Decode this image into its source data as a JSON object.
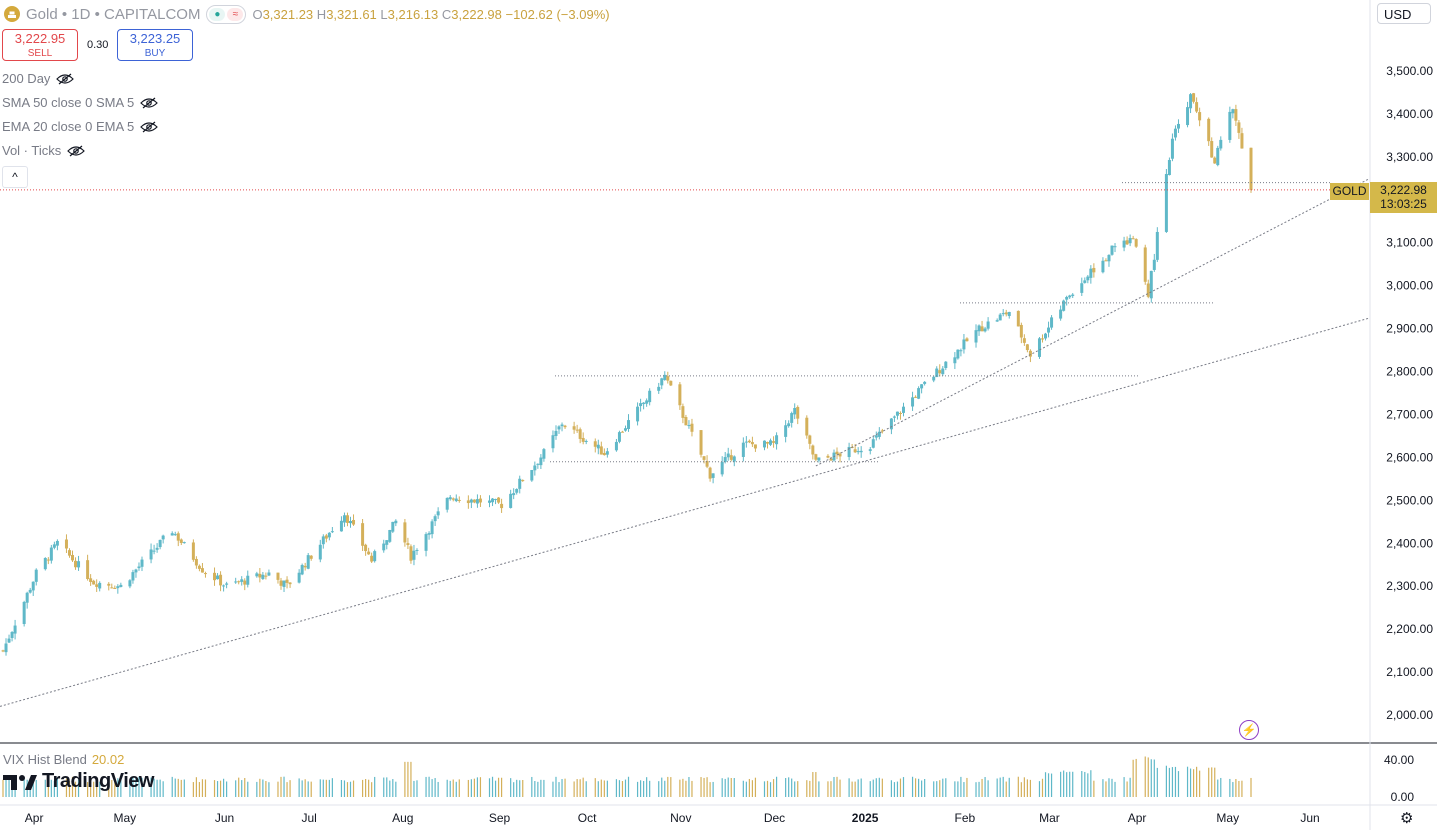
{
  "header": {
    "symbol_title": "Gold • 1D • CAPITALCOM",
    "ohlc": {
      "open_label": "O",
      "open": "3,321.23",
      "high_label": "H",
      "high": "3,321.61",
      "low_label": "L",
      "low": "3,216.13",
      "close_label": "C",
      "close": "3,222.98",
      "change": "−102.62 (−3.09%)"
    },
    "sell_price": "3,222.95",
    "sell_label": "SELL",
    "spread": "0.30",
    "buy_price": "3,223.25",
    "buy_label": "BUY",
    "currency": "USD",
    "collapse_icon": "chevron-up-icon"
  },
  "indicators": [
    {
      "label": "200 Day"
    },
    {
      "label": "SMA 50 close 0 SMA 5"
    },
    {
      "label": "EMA 20 close 0 EMA 5"
    },
    {
      "label": "Vol · Ticks"
    }
  ],
  "price_scale": {
    "labels": [
      "3,500.00",
      "3,400.00",
      "3,300.00",
      "3,100.00",
      "3,000.00",
      "2,900.00",
      "2,800.00",
      "2,700.00",
      "2,600.00",
      "2,500.00",
      "2,400.00",
      "2,300.00",
      "2,200.00",
      "2,100.00",
      "2,000.00"
    ],
    "last_price_symbol": "GOLD",
    "last_price": "3,222.98",
    "countdown": "13:03:25"
  },
  "vix": {
    "label": "VIX Hist Blend",
    "value": "20.02",
    "scale_labels": [
      "40.00",
      "0.00"
    ]
  },
  "time_axis": {
    "labels": [
      "Apr",
      "May",
      "Jun",
      "Jul",
      "Aug",
      "Sep",
      "Oct",
      "Nov",
      "Dec",
      "2025",
      "Feb",
      "Mar",
      "Apr",
      "May",
      "Jun"
    ]
  },
  "branding": {
    "logo_text": "TradingView"
  },
  "colors": {
    "up": "#5fb8c8",
    "down": "#d4b05a",
    "gold_tag": "#d4b84a",
    "sell": "#e2474b",
    "buy": "#3d63d6",
    "last_line": "#e2474b"
  },
  "chart_data": {
    "type": "candlestick",
    "title": "Gold • 1D • CAPITALCOM",
    "y_unit": "USD",
    "ylim": [
      1950,
      3550
    ],
    "x_period": "2024-03-25 to 2025-05-12, daily",
    "anchors": [
      [
        "2024-03-25",
        2150
      ],
      [
        "2024-04-05",
        2330
      ],
      [
        "2024-04-12",
        2400
      ],
      [
        "2024-04-24",
        2310
      ],
      [
        "2024-05-03",
        2300
      ],
      [
        "2024-05-20",
        2430
      ],
      [
        "2024-05-30",
        2340
      ],
      [
        "2024-06-07",
        2300
      ],
      [
        "2024-06-21",
        2330
      ],
      [
        "2024-06-27",
        2300
      ],
      [
        "2024-07-16",
        2470
      ],
      [
        "2024-07-25",
        2360
      ],
      [
        "2024-08-02",
        2450
      ],
      [
        "2024-08-07",
        2370
      ],
      [
        "2024-08-20",
        2510
      ],
      [
        "2024-09-06",
        2490
      ],
      [
        "2024-09-20",
        2610
      ],
      [
        "2024-09-26",
        2680
      ],
      [
        "2024-10-10",
        2610
      ],
      [
        "2024-10-30",
        2790
      ],
      [
        "2024-11-14",
        2560
      ],
      [
        "2024-11-25",
        2630
      ],
      [
        "2024-12-05",
        2630
      ],
      [
        "2024-12-12",
        2710
      ],
      [
        "2024-12-19",
        2590
      ],
      [
        "2025-01-06",
        2630
      ],
      [
        "2025-01-24",
        2770
      ],
      [
        "2025-02-11",
        2900
      ],
      [
        "2025-02-21",
        2940
      ],
      [
        "2025-02-28",
        2840
      ],
      [
        "2025-03-13",
        2980
      ],
      [
        "2025-03-28",
        3090
      ],
      [
        "2025-04-03",
        3110
      ],
      [
        "2025-04-08",
        2980
      ],
      [
        "2025-04-16",
        3340
      ],
      [
        "2025-04-22",
        3440
      ],
      [
        "2025-04-30",
        3290
      ],
      [
        "2025-05-06",
        3420
      ],
      [
        "2025-05-12",
        3222.98
      ]
    ],
    "last": {
      "open": 3321.23,
      "high": 3321.61,
      "low": 3216.13,
      "close": 3222.98
    },
    "horizontal_levels": [
      2590,
      2790,
      2960,
      3240
    ],
    "trendlines": [
      {
        "from": [
          "2024-03-25",
          2020
        ],
        "to": [
          "2025-05-15",
          2925
        ]
      },
      {
        "from": [
          "2024-12-19",
          2580
        ],
        "to": [
          "2025-05-15",
          3250
        ]
      }
    ],
    "vix_ylim": [
      0,
      50
    ]
  }
}
